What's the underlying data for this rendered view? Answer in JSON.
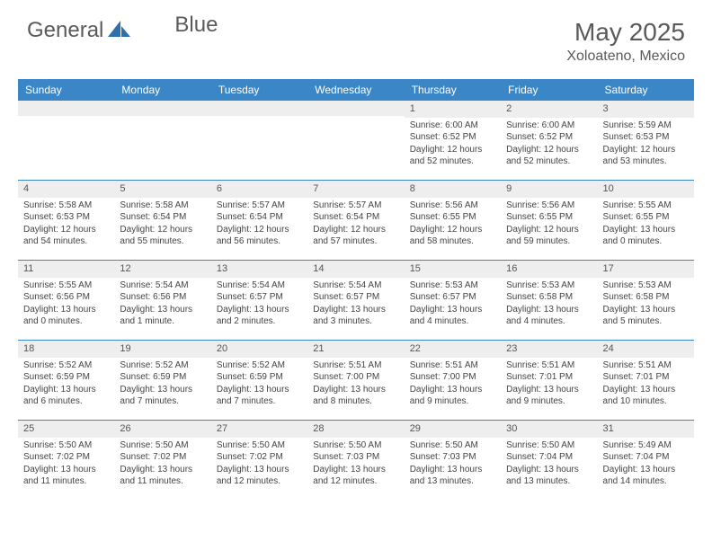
{
  "logo": {
    "text1": "General",
    "text2": "Blue"
  },
  "title": "May 2025",
  "location": "Xoloateno, Mexico",
  "colors": {
    "header_bg": "#3b86c6",
    "header_fg": "#ffffff",
    "daynum_bg": "#eeeeee",
    "divider": "#3b86c6",
    "text": "#444444",
    "title": "#5a5a5a"
  },
  "day_names": [
    "Sunday",
    "Monday",
    "Tuesday",
    "Wednesday",
    "Thursday",
    "Friday",
    "Saturday"
  ],
  "weeks": [
    [
      {
        "n": "",
        "sr": "",
        "ss": "",
        "dl": ""
      },
      {
        "n": "",
        "sr": "",
        "ss": "",
        "dl": ""
      },
      {
        "n": "",
        "sr": "",
        "ss": "",
        "dl": ""
      },
      {
        "n": "",
        "sr": "",
        "ss": "",
        "dl": ""
      },
      {
        "n": "1",
        "sr": "Sunrise: 6:00 AM",
        "ss": "Sunset: 6:52 PM",
        "dl": "Daylight: 12 hours and 52 minutes."
      },
      {
        "n": "2",
        "sr": "Sunrise: 6:00 AM",
        "ss": "Sunset: 6:52 PM",
        "dl": "Daylight: 12 hours and 52 minutes."
      },
      {
        "n": "3",
        "sr": "Sunrise: 5:59 AM",
        "ss": "Sunset: 6:53 PM",
        "dl": "Daylight: 12 hours and 53 minutes."
      }
    ],
    [
      {
        "n": "4",
        "sr": "Sunrise: 5:58 AM",
        "ss": "Sunset: 6:53 PM",
        "dl": "Daylight: 12 hours and 54 minutes."
      },
      {
        "n": "5",
        "sr": "Sunrise: 5:58 AM",
        "ss": "Sunset: 6:54 PM",
        "dl": "Daylight: 12 hours and 55 minutes."
      },
      {
        "n": "6",
        "sr": "Sunrise: 5:57 AM",
        "ss": "Sunset: 6:54 PM",
        "dl": "Daylight: 12 hours and 56 minutes."
      },
      {
        "n": "7",
        "sr": "Sunrise: 5:57 AM",
        "ss": "Sunset: 6:54 PM",
        "dl": "Daylight: 12 hours and 57 minutes."
      },
      {
        "n": "8",
        "sr": "Sunrise: 5:56 AM",
        "ss": "Sunset: 6:55 PM",
        "dl": "Daylight: 12 hours and 58 minutes."
      },
      {
        "n": "9",
        "sr": "Sunrise: 5:56 AM",
        "ss": "Sunset: 6:55 PM",
        "dl": "Daylight: 12 hours and 59 minutes."
      },
      {
        "n": "10",
        "sr": "Sunrise: 5:55 AM",
        "ss": "Sunset: 6:55 PM",
        "dl": "Daylight: 13 hours and 0 minutes."
      }
    ],
    [
      {
        "n": "11",
        "sr": "Sunrise: 5:55 AM",
        "ss": "Sunset: 6:56 PM",
        "dl": "Daylight: 13 hours and 0 minutes."
      },
      {
        "n": "12",
        "sr": "Sunrise: 5:54 AM",
        "ss": "Sunset: 6:56 PM",
        "dl": "Daylight: 13 hours and 1 minute."
      },
      {
        "n": "13",
        "sr": "Sunrise: 5:54 AM",
        "ss": "Sunset: 6:57 PM",
        "dl": "Daylight: 13 hours and 2 minutes."
      },
      {
        "n": "14",
        "sr": "Sunrise: 5:54 AM",
        "ss": "Sunset: 6:57 PM",
        "dl": "Daylight: 13 hours and 3 minutes."
      },
      {
        "n": "15",
        "sr": "Sunrise: 5:53 AM",
        "ss": "Sunset: 6:57 PM",
        "dl": "Daylight: 13 hours and 4 minutes."
      },
      {
        "n": "16",
        "sr": "Sunrise: 5:53 AM",
        "ss": "Sunset: 6:58 PM",
        "dl": "Daylight: 13 hours and 4 minutes."
      },
      {
        "n": "17",
        "sr": "Sunrise: 5:53 AM",
        "ss": "Sunset: 6:58 PM",
        "dl": "Daylight: 13 hours and 5 minutes."
      }
    ],
    [
      {
        "n": "18",
        "sr": "Sunrise: 5:52 AM",
        "ss": "Sunset: 6:59 PM",
        "dl": "Daylight: 13 hours and 6 minutes."
      },
      {
        "n": "19",
        "sr": "Sunrise: 5:52 AM",
        "ss": "Sunset: 6:59 PM",
        "dl": "Daylight: 13 hours and 7 minutes."
      },
      {
        "n": "20",
        "sr": "Sunrise: 5:52 AM",
        "ss": "Sunset: 6:59 PM",
        "dl": "Daylight: 13 hours and 7 minutes."
      },
      {
        "n": "21",
        "sr": "Sunrise: 5:51 AM",
        "ss": "Sunset: 7:00 PM",
        "dl": "Daylight: 13 hours and 8 minutes."
      },
      {
        "n": "22",
        "sr": "Sunrise: 5:51 AM",
        "ss": "Sunset: 7:00 PM",
        "dl": "Daylight: 13 hours and 9 minutes."
      },
      {
        "n": "23",
        "sr": "Sunrise: 5:51 AM",
        "ss": "Sunset: 7:01 PM",
        "dl": "Daylight: 13 hours and 9 minutes."
      },
      {
        "n": "24",
        "sr": "Sunrise: 5:51 AM",
        "ss": "Sunset: 7:01 PM",
        "dl": "Daylight: 13 hours and 10 minutes."
      }
    ],
    [
      {
        "n": "25",
        "sr": "Sunrise: 5:50 AM",
        "ss": "Sunset: 7:02 PM",
        "dl": "Daylight: 13 hours and 11 minutes."
      },
      {
        "n": "26",
        "sr": "Sunrise: 5:50 AM",
        "ss": "Sunset: 7:02 PM",
        "dl": "Daylight: 13 hours and 11 minutes."
      },
      {
        "n": "27",
        "sr": "Sunrise: 5:50 AM",
        "ss": "Sunset: 7:02 PM",
        "dl": "Daylight: 13 hours and 12 minutes."
      },
      {
        "n": "28",
        "sr": "Sunrise: 5:50 AM",
        "ss": "Sunset: 7:03 PM",
        "dl": "Daylight: 13 hours and 12 minutes."
      },
      {
        "n": "29",
        "sr": "Sunrise: 5:50 AM",
        "ss": "Sunset: 7:03 PM",
        "dl": "Daylight: 13 hours and 13 minutes."
      },
      {
        "n": "30",
        "sr": "Sunrise: 5:50 AM",
        "ss": "Sunset: 7:04 PM",
        "dl": "Daylight: 13 hours and 13 minutes."
      },
      {
        "n": "31",
        "sr": "Sunrise: 5:49 AM",
        "ss": "Sunset: 7:04 PM",
        "dl": "Daylight: 13 hours and 14 minutes."
      }
    ]
  ]
}
